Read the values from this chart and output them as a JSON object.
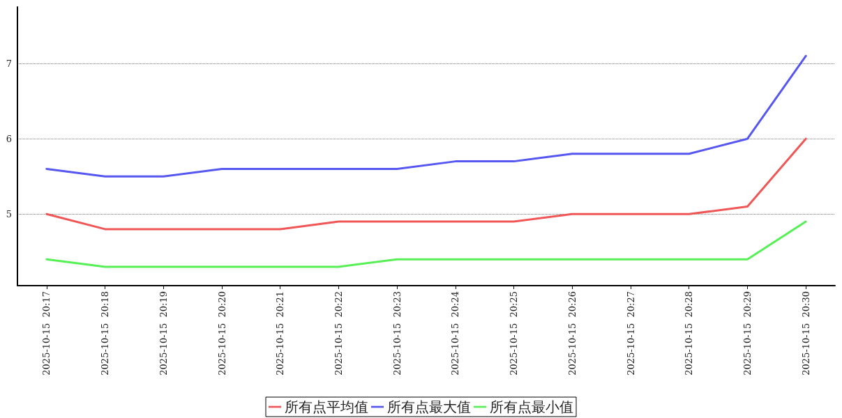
{
  "chart_data": {
    "type": "line",
    "categories": [
      "2025-10-15  20:17",
      "2025-10-15  20:18",
      "2025-10-15  20:19",
      "2025-10-15  20:20",
      "2025-10-15  20:21",
      "2025-10-15  20:22",
      "2025-10-15  20:23",
      "2025-10-15  20:24",
      "2025-10-15  20:25",
      "2025-10-15  20:26",
      "2025-10-15  20:27",
      "2025-10-15  20:28",
      "2025-10-15  20:29",
      "2025-10-15  20:30"
    ],
    "series": [
      {
        "name": "所有点平均值",
        "color": "#f05656",
        "values": [
          5.0,
          4.8,
          4.8,
          4.8,
          4.8,
          4.9,
          4.9,
          4.9,
          4.9,
          5.0,
          5.0,
          5.0,
          5.1,
          6.0
        ]
      },
      {
        "name": "所有点最大值",
        "color": "#5656f0",
        "values": [
          5.6,
          5.5,
          5.5,
          5.6,
          5.6,
          5.6,
          5.6,
          5.7,
          5.7,
          5.8,
          5.8,
          5.8,
          6.0,
          7.1
        ]
      },
      {
        "name": "所有点最小值",
        "color": "#56f056",
        "values": [
          4.4,
          4.3,
          4.3,
          4.3,
          4.3,
          4.3,
          4.4,
          4.4,
          4.4,
          4.4,
          4.4,
          4.4,
          4.4,
          4.9
        ]
      }
    ],
    "ylim": [
      4.05,
      7.75
    ],
    "yticks": [
      5,
      6,
      7
    ],
    "grid": "y",
    "legend": "bottom",
    "marker": "none",
    "line_style": "solid"
  }
}
